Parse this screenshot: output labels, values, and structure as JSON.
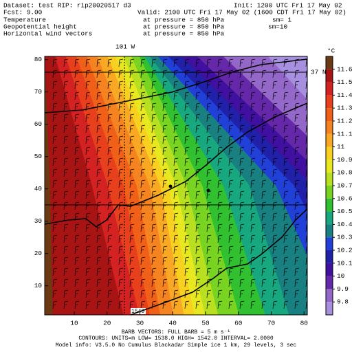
{
  "header": {
    "dataset": "Dataset: test  RIP: rip20020517 d3",
    "fcst": "Fcst:     9.00",
    "fields": [
      "Temperature",
      "Geopotential height",
      "Horizontal wind vectors"
    ],
    "init": "Init: 1200 UTC Fri 17 May 02",
    "valid": "Valid: 2100 UTC Fri 17 May 02 (1600 CDT Fri 17 May 02)",
    "pressures": [
      "at pressure =  850 hPa",
      "at pressure =  850 hPa",
      "at pressure =  850 hPa"
    ],
    "smoothing": [
      "sm= 1",
      "sm=10"
    ]
  },
  "map": {
    "xlim": [
      1,
      81
    ],
    "ylim": [
      1,
      81
    ],
    "xticks": [
      10,
      20,
      30,
      40,
      50,
      60,
      70,
      80
    ],
    "yticks": [
      10,
      20,
      30,
      40,
      50,
      60,
      70,
      80
    ],
    "lon_label": "101 W",
    "lat_label": "37 N",
    "contour_label": "1540"
  },
  "colorbar": {
    "unit": "°C",
    "levels": [
      11.6,
      11.5,
      11.4,
      11.3,
      11.2,
      11.1,
      11,
      10.9,
      10.8,
      10.7,
      10.6,
      10.5,
      10.4,
      10.3,
      10.2,
      10.1,
      10,
      9.9,
      9.8
    ],
    "colors": [
      "#6b3a12",
      "#a81414",
      "#d42222",
      "#e8401c",
      "#f06018",
      "#f58420",
      "#f8a822",
      "#f8d020",
      "#e8e820",
      "#b8e020",
      "#78d420",
      "#30c030",
      "#18a880",
      "#188080",
      "#2040d8",
      "#2020a8",
      "#4010a0",
      "#6428a8",
      "#9468c8",
      "#a890e0"
    ]
  },
  "footer": {
    "barbs": "BARB VECTORS:  FULL BARB = 5 m s⁻¹",
    "contours": "CONTOURS:  UNITS=m   LOW=  1538.0      HIGH=  1542.0      INTERVAL=   2.0000",
    "model": "Model info: V3.5.0  No Cumulus  Blackadar  Simple ice    1 km,  29 levels,    3 sec"
  }
}
